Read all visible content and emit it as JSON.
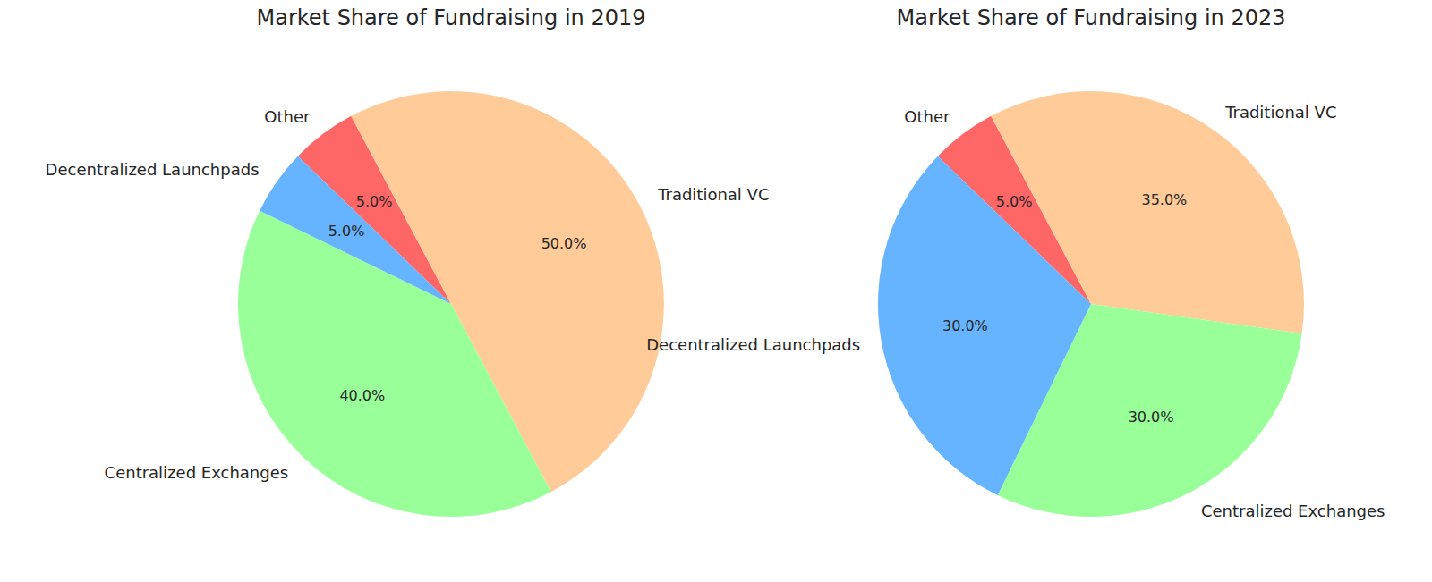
{
  "chart_data": [
    {
      "type": "pie",
      "title": "Market Share of Fundraising in 2019",
      "categories": [
        "Other",
        "Traditional VC",
        "Centralized Exchanges",
        "Decentralized Launchpads"
      ],
      "values": [
        5,
        50,
        40,
        5
      ],
      "value_labels": [
        "5.0%",
        "50.0%",
        "40.0%",
        "5.0%"
      ],
      "colors": [
        "#ff6666",
        "#ffcc99",
        "#99ff99",
        "#66b3ff"
      ],
      "data_labels": true
    },
    {
      "type": "pie",
      "title": "Market Share of Fundraising in 2023",
      "categories": [
        "Other",
        "Traditional VC",
        "Centralized Exchanges",
        "Decentralized Launchpads"
      ],
      "values": [
        5,
        35,
        30,
        30
      ],
      "value_labels": [
        "5.0%",
        "35.0%",
        "30.0%",
        "30.0%"
      ],
      "colors": [
        "#ff6666",
        "#ffcc99",
        "#99ff99",
        "#66b3ff"
      ],
      "data_labels": true
    }
  ]
}
